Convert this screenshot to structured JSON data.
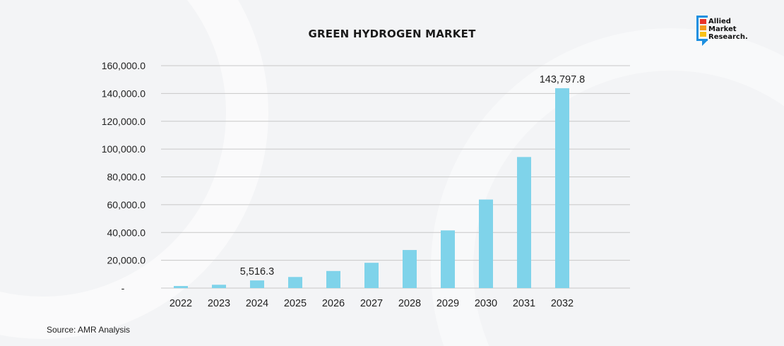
{
  "chart_data": {
    "type": "bar",
    "title": "GREEN HYDROGEN MARKET",
    "categories": [
      "2022",
      "2023",
      "2024",
      "2025",
      "2026",
      "2027",
      "2028",
      "2029",
      "2030",
      "2031",
      "2032"
    ],
    "values": [
      1500,
      2400,
      5516.3,
      8000,
      12300,
      18200,
      27400,
      41500,
      63700,
      94300,
      143797.8
    ],
    "data_labels": [
      {
        "category": "2024",
        "text": "5,516.3"
      },
      {
        "category": "2032",
        "text": "143,797.8"
      }
    ],
    "ylim": [
      0,
      160000
    ],
    "yticks": [
      {
        "value": 0,
        "label": "-"
      },
      {
        "value": 20000,
        "label": "20,000.0"
      },
      {
        "value": 40000,
        "label": "40,000.0"
      },
      {
        "value": 60000,
        "label": "60,000.0"
      },
      {
        "value": 80000,
        "label": "80,000.0"
      },
      {
        "value": 100000,
        "label": "100,000.0"
      },
      {
        "value": 120000,
        "label": "120,000.0"
      },
      {
        "value": 140000,
        "label": "140,000.0"
      },
      {
        "value": 160000,
        "label": "160,000.0"
      }
    ],
    "xlabel": "",
    "ylabel": "",
    "grid": true,
    "bar_color": "#7fd3ea"
  },
  "source": "Source: AMR Analysis",
  "logo": {
    "lines": [
      "Allied",
      "Market",
      "Research."
    ],
    "square_colors": [
      "#e8332a",
      "#f39a1e",
      "#f7c21a"
    ],
    "frame_color": "#1c8fe0"
  }
}
